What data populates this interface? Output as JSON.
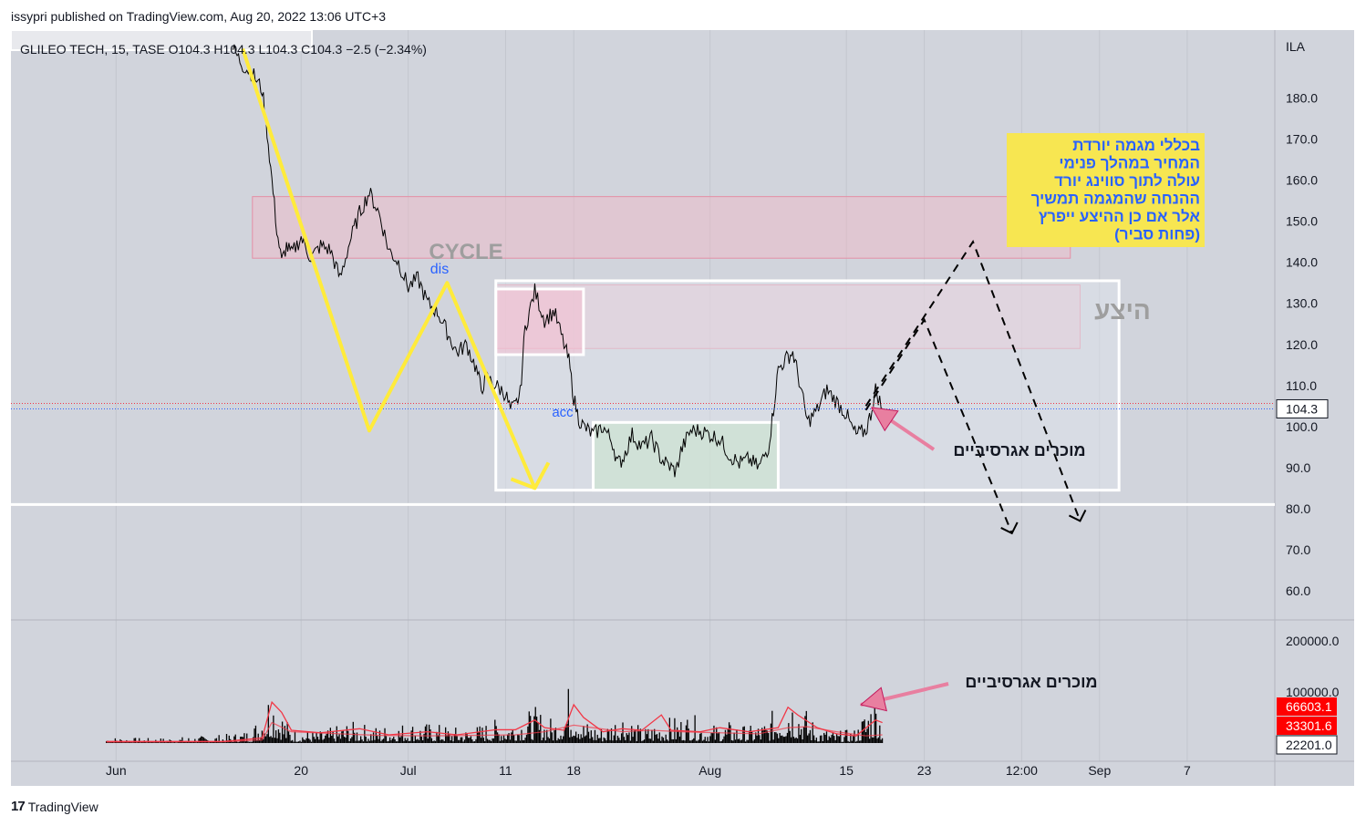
{
  "header": {
    "published": "issypri published on TradingView.com, Aug 20, 2022 13:06 UTC+3"
  },
  "footer": {
    "brand": "TradingView",
    "logo": "tradingview-logo-icon"
  },
  "chart_data": {
    "type": "line",
    "legend_text": "GLILEO TECH, 15, TASE  O104.3  H104.3  L104.3  C104.3  −2.5 (−2.34%)",
    "currency": "ILA",
    "price_ticks": [
      "180.0",
      "170.0",
      "160.0",
      "150.0",
      "140.0",
      "130.0",
      "120.0",
      "110.0",
      "100.0",
      "90.0",
      "80.0",
      "70.0",
      "60.0"
    ],
    "price_tick_values": [
      180,
      170,
      160,
      150,
      140,
      130,
      120,
      110,
      100,
      90,
      80,
      70,
      60
    ],
    "last_price_label": "104.3",
    "last_price": 104.3,
    "volume_ticks": [
      "200000.0",
      "100000.0"
    ],
    "volume_tick_values": [
      200000,
      100000
    ],
    "volume_labels": [
      {
        "text": "66603.1",
        "value": 66603.1,
        "color": "#ff0000"
      },
      {
        "text": "33301.6",
        "value": 33301.6,
        "color": "#ff0000"
      },
      {
        "text": "22201.0",
        "value": 22201.0,
        "color": "#ffffff"
      }
    ],
    "x_ticks": [
      "Jun",
      "20",
      "Jul",
      "11",
      "18",
      "Aug",
      "15",
      "23",
      "12:00",
      "Sep",
      "7"
    ],
    "x_tick_days": [
      1,
      20,
      31,
      41,
      48,
      62,
      76,
      84,
      94,
      102,
      111
    ],
    "price_series": [
      [
        13,
        192
      ],
      [
        14,
        188
      ],
      [
        15,
        186
      ],
      [
        16,
        182
      ],
      [
        16.5,
        172
      ],
      [
        17,
        160
      ],
      [
        17.5,
        148
      ],
      [
        18,
        140
      ],
      [
        18.5,
        144
      ],
      [
        19,
        142
      ],
      [
        20,
        146
      ],
      [
        21,
        141
      ],
      [
        22,
        144
      ],
      [
        23,
        143
      ],
      [
        24,
        136
      ],
      [
        25,
        145
      ],
      [
        26,
        152
      ],
      [
        27,
        157
      ],
      [
        28,
        152
      ],
      [
        29,
        143
      ],
      [
        30,
        140
      ],
      [
        31,
        134
      ],
      [
        32,
        136
      ],
      [
        33,
        130
      ],
      [
        34,
        128
      ],
      [
        35,
        123
      ],
      [
        36,
        118
      ],
      [
        37,
        120
      ],
      [
        38,
        114
      ],
      [
        38.5,
        109
      ],
      [
        39,
        112
      ],
      [
        40,
        110
      ],
      [
        41,
        108
      ],
      [
        41.5,
        104
      ],
      [
        42,
        105
      ],
      [
        42.5,
        108
      ],
      [
        43,
        124
      ],
      [
        44,
        133
      ],
      [
        45,
        126
      ],
      [
        46,
        128
      ],
      [
        47,
        120
      ],
      [
        47.5,
        116
      ],
      [
        48,
        107
      ],
      [
        48.5,
        102
      ],
      [
        49,
        100
      ],
      [
        50,
        98
      ],
      [
        51,
        100
      ],
      [
        52,
        96
      ],
      [
        52.5,
        91
      ],
      [
        53,
        92
      ],
      [
        54,
        98
      ],
      [
        55,
        95
      ],
      [
        56,
        97
      ],
      [
        57,
        92
      ],
      [
        58,
        90
      ],
      [
        58.5,
        89
      ],
      [
        59,
        94
      ],
      [
        60,
        99
      ],
      [
        61,
        99
      ],
      [
        62,
        98
      ],
      [
        63,
        97
      ],
      [
        64,
        93
      ],
      [
        65,
        91
      ],
      [
        66,
        92
      ],
      [
        67,
        90
      ],
      [
        68,
        95
      ],
      [
        68.5,
        104
      ],
      [
        69,
        114
      ],
      [
        70,
        117
      ],
      [
        70.5,
        118
      ],
      [
        71,
        113
      ],
      [
        72,
        101
      ],
      [
        73,
        104
      ],
      [
        74,
        109
      ],
      [
        75,
        106
      ],
      [
        76,
        103
      ],
      [
        76.5,
        100
      ],
      [
        77,
        98
      ],
      [
        78,
        99
      ],
      [
        78.5,
        103
      ],
      [
        79,
        109
      ],
      [
        79.7,
        104.3
      ]
    ],
    "volume_series": [
      [
        0,
        5000
      ],
      [
        5,
        4000
      ],
      [
        10,
        6000
      ],
      [
        13,
        8000
      ],
      [
        15,
        12000
      ],
      [
        17,
        55000
      ],
      [
        18,
        30000
      ],
      [
        19,
        12000
      ],
      [
        22,
        10000
      ],
      [
        25,
        18000
      ],
      [
        28,
        14000
      ],
      [
        31,
        18000
      ],
      [
        34,
        16000
      ],
      [
        37,
        12000
      ],
      [
        40,
        20000
      ],
      [
        42,
        22000
      ],
      [
        44,
        30000
      ],
      [
        46,
        20000
      ],
      [
        48,
        60000
      ],
      [
        49,
        20000
      ],
      [
        51,
        14000
      ],
      [
        53,
        30000
      ],
      [
        55,
        12000
      ],
      [
        57,
        20000
      ],
      [
        60,
        25000
      ],
      [
        62,
        15000
      ],
      [
        64,
        18000
      ],
      [
        66,
        14000
      ],
      [
        68,
        20000
      ],
      [
        70,
        55000
      ],
      [
        71,
        40000
      ],
      [
        73,
        14000
      ],
      [
        75,
        10000
      ],
      [
        77,
        12000
      ],
      [
        79,
        50000
      ],
      [
        79.7,
        22201
      ]
    ],
    "volume_ma_series": [
      [
        0,
        3000
      ],
      [
        12,
        3000
      ],
      [
        16,
        10000
      ],
      [
        17,
        80000
      ],
      [
        18,
        60000
      ],
      [
        19,
        25000
      ],
      [
        22,
        20000
      ],
      [
        26,
        28000
      ],
      [
        29,
        16000
      ],
      [
        33,
        22000
      ],
      [
        36,
        16000
      ],
      [
        40,
        26000
      ],
      [
        42,
        26000
      ],
      [
        44,
        45000
      ],
      [
        45,
        30000
      ],
      [
        47,
        25000
      ],
      [
        48,
        75000
      ],
      [
        49,
        50000
      ],
      [
        51,
        22000
      ],
      [
        53,
        28000
      ],
      [
        55,
        25000
      ],
      [
        57,
        55000
      ],
      [
        58,
        25000
      ],
      [
        61,
        22000
      ],
      [
        63,
        30000
      ],
      [
        66,
        22000
      ],
      [
        69,
        30000
      ],
      [
        70,
        70000
      ],
      [
        71,
        55000
      ],
      [
        73,
        30000
      ],
      [
        75,
        18000
      ],
      [
        77,
        14000
      ],
      [
        79,
        45000
      ],
      [
        79.7,
        40000
      ]
    ],
    "volume_ma2_series": [
      [
        0,
        2000
      ],
      [
        12,
        2500
      ],
      [
        16,
        6000
      ],
      [
        17,
        40000
      ],
      [
        19,
        22000
      ],
      [
        24,
        18000
      ],
      [
        28,
        15000
      ],
      [
        33,
        14000
      ],
      [
        38,
        15000
      ],
      [
        42,
        16000
      ],
      [
        45,
        22000
      ],
      [
        48,
        35000
      ],
      [
        50,
        30000
      ],
      [
        53,
        22000
      ],
      [
        56,
        25000
      ],
      [
        59,
        22000
      ],
      [
        63,
        20000
      ],
      [
        67,
        18000
      ],
      [
        70,
        30000
      ],
      [
        72,
        32000
      ],
      [
        75,
        22000
      ],
      [
        78,
        14000
      ],
      [
        79.7,
        16000
      ]
    ],
    "annotations": [
      {
        "text": "CYCLE",
        "color": "#9e9e9e"
      },
      {
        "text": "dis",
        "color": "#2962ff"
      },
      {
        "text": "acc",
        "color": "#2962ff"
      },
      {
        "text": "היצע",
        "color": "#9e9e9e"
      },
      {
        "text": "מוכרים אגרסיביים",
        "color": "#131722"
      },
      {
        "text": "מוכרים אגרסיביים",
        "color": "#131722"
      }
    ],
    "note_box": {
      "lines": [
        "בכללי מגמה יורדת",
        "המחיר במהלך פנימי",
        "עולה לתוך סווינג יורד",
        "ההנחה שהמגמה תמשיך",
        "אלר אם כן ההיצע ייפרץ",
        "(פחות סביר)"
      ],
      "background": "#f7e651",
      "text_color": "#2962ff"
    },
    "zones": [
      {
        "name": "supply-zone-upper",
        "from_day": 15,
        "to_day": 99,
        "low": 141,
        "high": 156,
        "color": "#f2b8c6"
      },
      {
        "name": "supply-zone-lower",
        "from_day": 40,
        "to_day": 100,
        "low": 119,
        "high": 134.5,
        "color": "#f2b8c6"
      },
      {
        "name": "range-box",
        "from_day": 40,
        "to_day": 104,
        "low": 84.5,
        "high": 135.5,
        "color": "#e0e3eb"
      },
      {
        "name": "distribution-box",
        "from_day": 40,
        "to_day": 49,
        "low": 117.5,
        "high": 133.5,
        "color": "#f8bbd0"
      },
      {
        "name": "accumulation-box",
        "from_day": 50,
        "to_day": 69,
        "low": 84.5,
        "high": 101,
        "color": "#c8e6c9"
      }
    ],
    "cycle_path": [
      [
        14,
        192
      ],
      [
        27,
        99
      ],
      [
        35,
        135
      ],
      [
        44,
        85
      ]
    ],
    "projection_path_1": [
      [
        78,
        105
      ],
      [
        89,
        145
      ],
      [
        100,
        77
      ]
    ],
    "projection_path_2": [
      [
        78,
        104
      ],
      [
        84,
        126
      ],
      [
        93,
        74
      ]
    ],
    "colors": {
      "background": "#d1d4dc",
      "price": "#000000",
      "cycle": "#ffeb3b",
      "volume_ma": "#f23645",
      "arrow": "#e87fa0"
    },
    "xlim_days": [
      -9.8,
      120
    ],
    "ylim_price": [
      54,
      195
    ],
    "ylim_volume": [
      0,
      205000
    ]
  }
}
